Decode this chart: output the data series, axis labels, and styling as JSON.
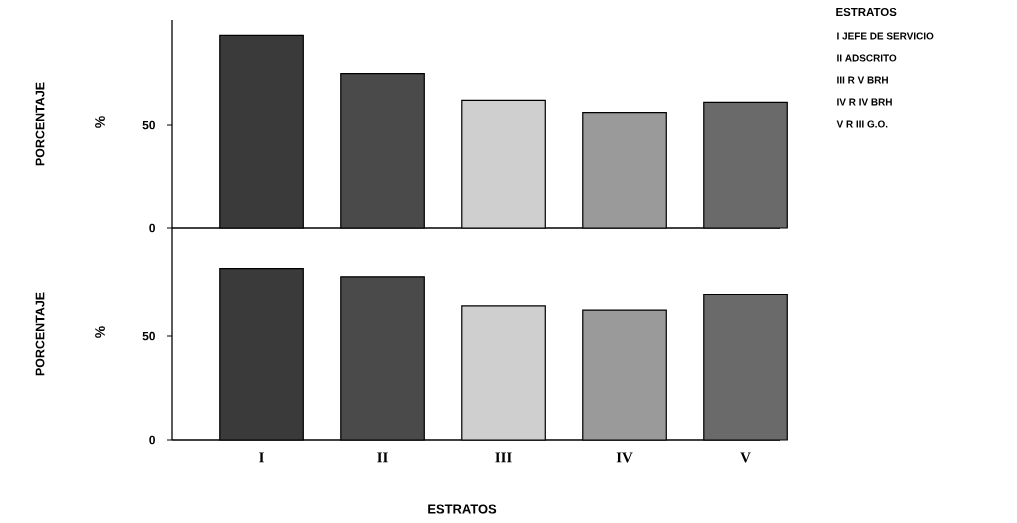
{
  "chart_data": [
    {
      "type": "bar",
      "ylabel": "PORCENTAJE",
      "categories": [
        null,
        null,
        null,
        null,
        null
      ],
      "values": [
        93.5,
        75,
        62,
        56,
        61
      ],
      "colors": [
        "#3a3a3a",
        "#4a4a4a",
        "#cfcfcf",
        "#9a9a9a",
        "#6a6a6a"
      ],
      "ylim": [
        0,
        101
      ],
      "yticks": [
        0,
        50
      ],
      "tick_labels": "y",
      "annotations": [
        "%",
        "ESTRATOS",
        "I JEFE DE SERVICIO",
        "II ADSCRITO",
        "III R V  BRH",
        "IV R IV  BRH",
        "V R III  G.O."
      ]
    },
    {
      "type": "bar",
      "ylabel": "PORCENTAJE",
      "xlabel": "ESTRATOS",
      "categories": [
        "I",
        "II",
        "III",
        "IV",
        "V"
      ],
      "values": [
        82.5,
        78.5,
        64.5,
        62.5,
        70
      ],
      "colors": [
        "#3a3a3a",
        "#4a4a4a",
        "#cfcfcf",
        "#9a9a9a",
        "#6a6a6a"
      ],
      "ylim": [
        0,
        102
      ],
      "yticks": [
        0,
        50
      ],
      "annotations": [
        "%"
      ]
    }
  ]
}
